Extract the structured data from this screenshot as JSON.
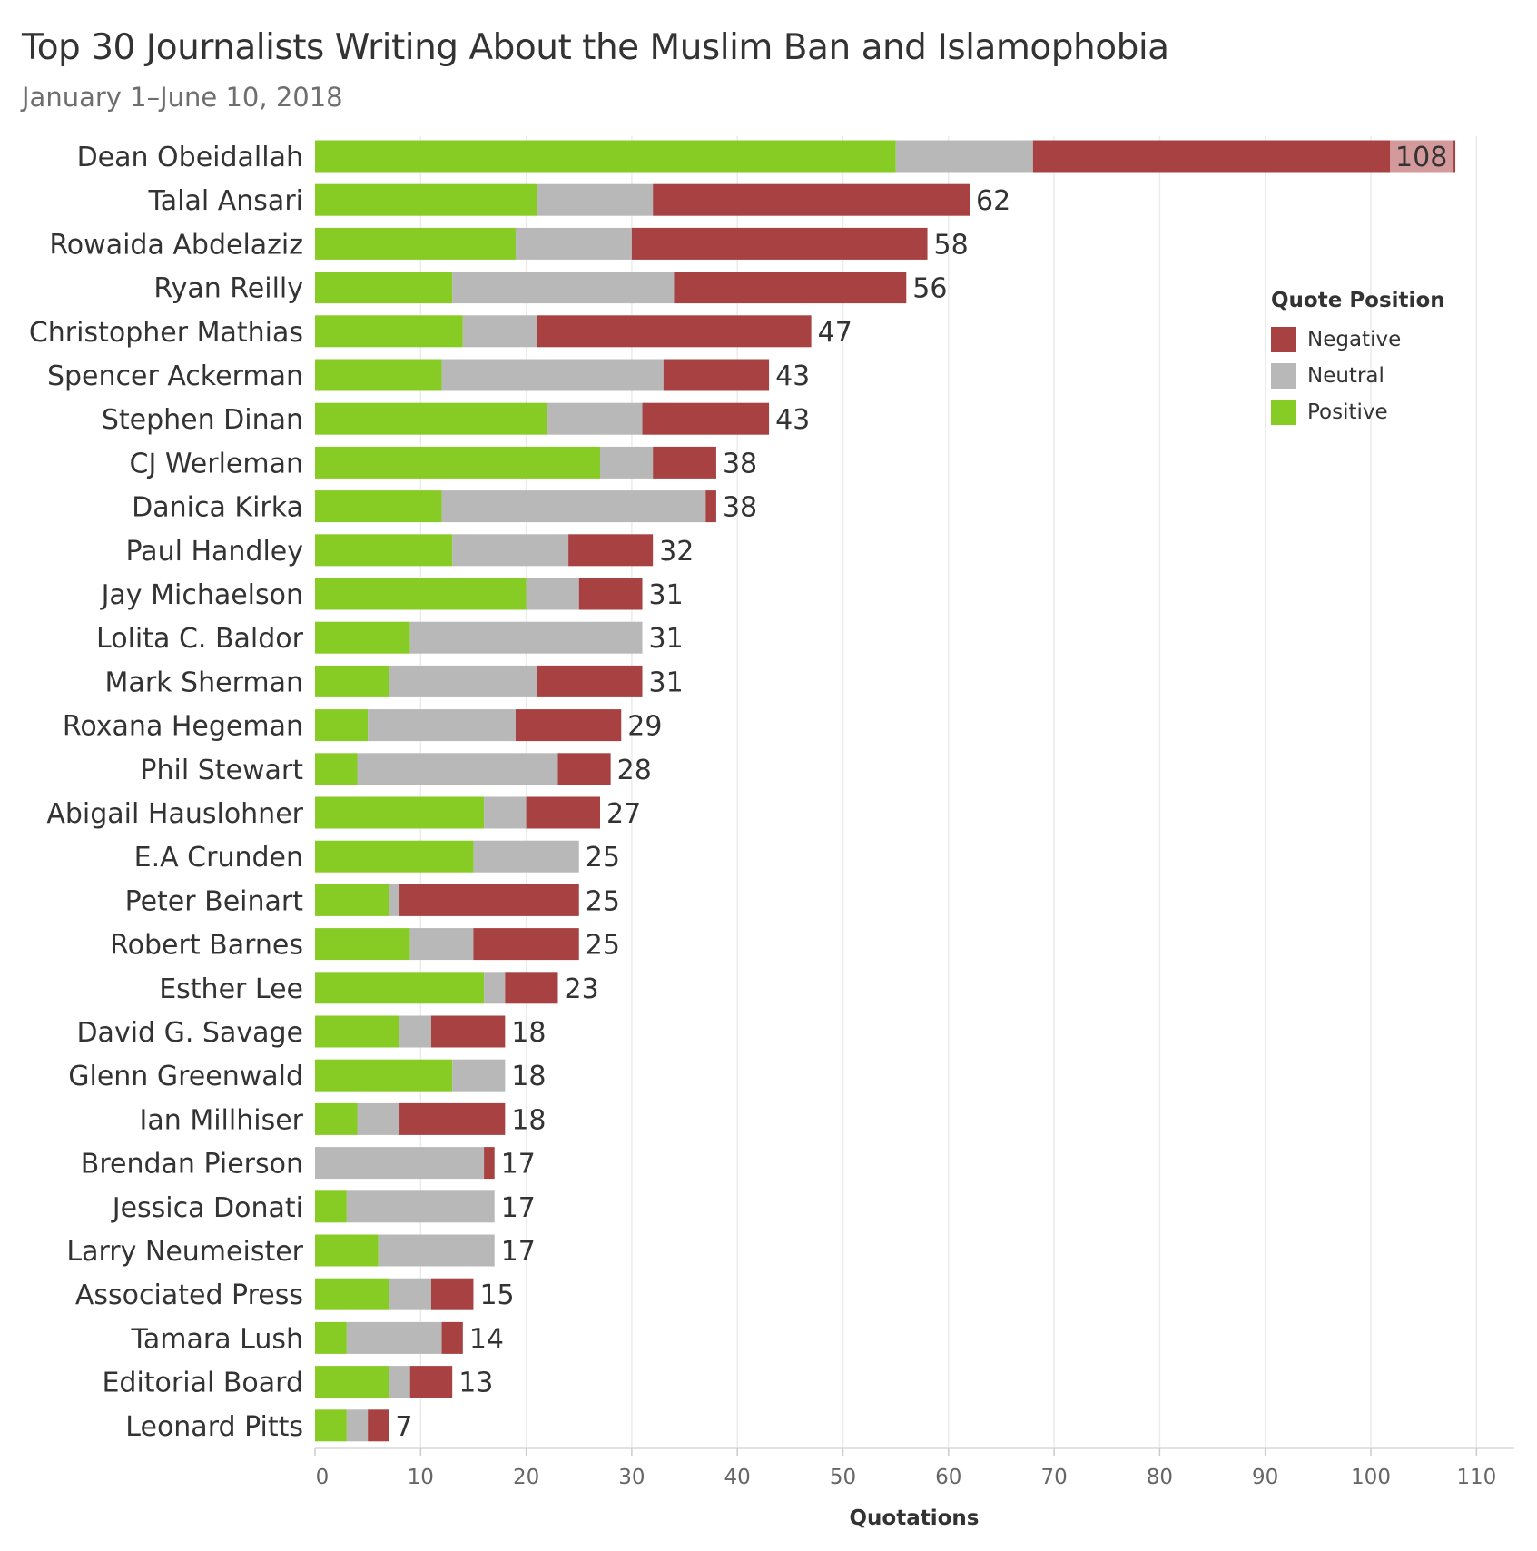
{
  "chart_data": {
    "type": "bar",
    "orientation": "horizontal",
    "stacked": true,
    "title": "Top 30 Journalists Writing About the Muslim Ban and Islamophobia",
    "subtitle": "January 1–June 10, 2018",
    "xlabel": "Quotations",
    "ylabel": "",
    "xlim": [
      0,
      114
    ],
    "xticks": [
      0,
      10,
      20,
      30,
      40,
      50,
      60,
      70,
      80,
      90,
      100,
      110
    ],
    "grid": "vertical",
    "legend": {
      "title": "Quote Position",
      "placement": "top-right"
    },
    "categories": [
      "Dean Obeidallah",
      "Talal Ansari",
      "Rowaida Abdelaziz",
      "Ryan Reilly",
      "Christopher Mathias",
      "Spencer Ackerman",
      "Stephen Dinan",
      "CJ Werleman",
      "Danica Kirka",
      "Paul Handley",
      "Jay Michaelson",
      "Lolita C. Baldor",
      "Mark Sherman",
      "Roxana Hegeman",
      "Phil Stewart",
      "Abigail Hauslohner",
      "E.A Crunden",
      "Peter Beinart",
      "Robert Barnes",
      "Esther Lee",
      "David G. Savage",
      "Glenn Greenwald",
      "Ian Millhiser",
      "Brendan Pierson",
      "Jessica Donati",
      "Larry Neumeister",
      "Associated Press",
      "Tamara Lush",
      "Editorial Board",
      "Leonard Pitts"
    ],
    "series": [
      {
        "name": "Positive",
        "color": "#86cc24",
        "values": [
          55,
          21,
          19,
          13,
          14,
          12,
          22,
          27,
          12,
          13,
          20,
          9,
          7,
          5,
          4,
          16,
          15,
          7,
          9,
          16,
          8,
          13,
          4,
          0,
          3,
          6,
          7,
          3,
          7,
          3
        ]
      },
      {
        "name": "Neutral",
        "color": "#b8b8b8",
        "values": [
          13,
          11,
          11,
          21,
          7,
          21,
          9,
          5,
          25,
          11,
          5,
          22,
          14,
          14,
          19,
          4,
          10,
          1,
          6,
          2,
          3,
          5,
          4,
          16,
          14,
          11,
          4,
          9,
          2,
          2
        ]
      },
      {
        "name": "Negative",
        "color": "#a84142",
        "values": [
          40,
          30,
          28,
          22,
          26,
          10,
          12,
          6,
          1,
          8,
          6,
          0,
          10,
          10,
          5,
          7,
          0,
          17,
          10,
          5,
          7,
          0,
          10,
          1,
          0,
          0,
          4,
          2,
          4,
          2
        ]
      }
    ],
    "totals": [
      108,
      62,
      58,
      56,
      47,
      43,
      43,
      38,
      38,
      32,
      31,
      31,
      31,
      29,
      28,
      27,
      25,
      25,
      25,
      23,
      18,
      18,
      18,
      17,
      17,
      17,
      15,
      14,
      13,
      7
    ],
    "legend_order": [
      "Negative",
      "Neutral",
      "Positive"
    ]
  }
}
